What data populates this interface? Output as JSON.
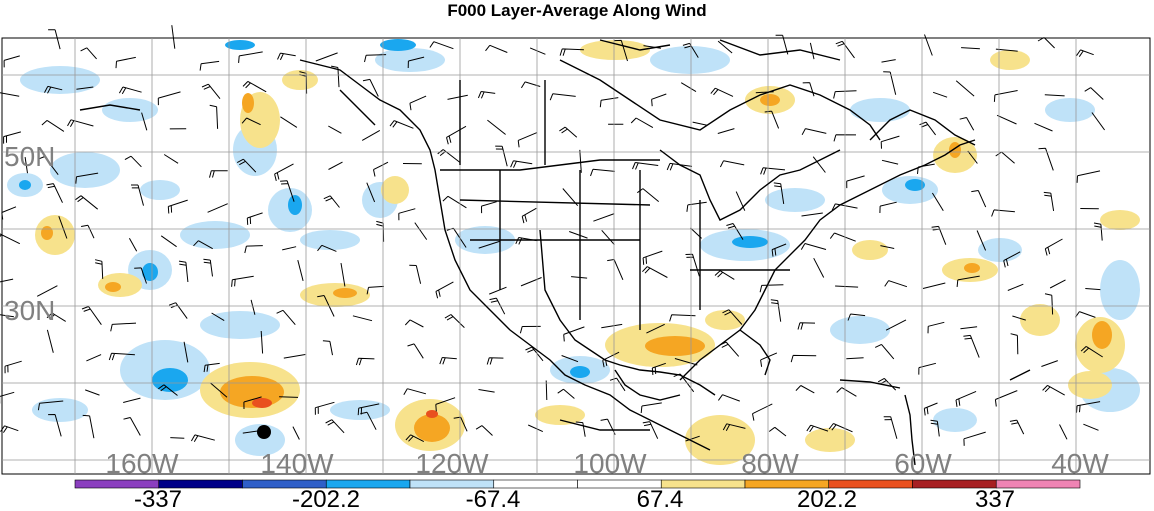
{
  "title": "F000 Layer-Average Along Wind",
  "lat_labels": [
    "50N",
    "30N"
  ],
  "lon_labels": [
    "160W",
    "140W",
    "120W",
    "100W",
    "80W",
    "60W",
    "40W"
  ],
  "colorbar": {
    "labels": [
      "-337",
      "-202.2",
      "-67.4",
      "67.4",
      "202.2",
      "337"
    ],
    "colors": [
      "#8b3fbf",
      "#000088",
      "#2f5fc8",
      "#1aa7ef",
      "#bfe2f8",
      "#ffffff",
      "#ffffff",
      "#f7e28c",
      "#f5a623",
      "#e9501e",
      "#a71f22",
      "#ef84b4"
    ]
  },
  "colors": {
    "grid": "#999999",
    "coast": "#000000",
    "blue_light": "#bfe2f8",
    "blue": "#1aa7ef",
    "yellow": "#f7e28c",
    "orange": "#f5a623",
    "red": "#e9501e",
    "label_gray": "#808080"
  }
}
